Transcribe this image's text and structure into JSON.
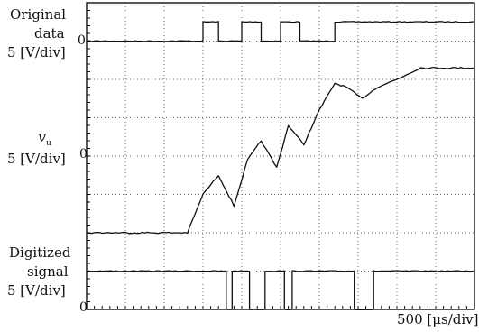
{
  "labels": {
    "original_l1": "Original",
    "original_l2": "data",
    "original_scale": "5 [V/div]",
    "vu_symbol": "v",
    "vu_sub": "u",
    "vu_scale": "5 [V/div]",
    "digitized_l1": "Digitized",
    "digitized_l2": "signal",
    "digitized_scale": "5 [V/div]",
    "zero": "0",
    "time_scale": "500 [μs/div]"
  },
  "chart_data": {
    "type": "line",
    "xlabel": "500 [μs/div]",
    "grid": true,
    "x_divisions": 10,
    "y_divisions": 8,
    "x_unit": "div",
    "series": [
      {
        "name": "Original data",
        "volts_per_div": 5,
        "zero_level_div": 7.0,
        "x": [
          0,
          3.0,
          3.0,
          3.4,
          3.4,
          4.0,
          4.0,
          4.5,
          4.5,
          5.0,
          5.0,
          5.5,
          5.5,
          6.4,
          6.4,
          10
        ],
        "y_div": [
          0,
          0,
          0.5,
          0.5,
          0,
          0,
          0.5,
          0.5,
          0,
          0,
          0.5,
          0.5,
          0,
          0,
          0.5,
          0.5
        ]
      },
      {
        "name": "v_u",
        "volts_per_div": 5,
        "zero_level_div": 4.0,
        "x": [
          0,
          1.5,
          2.6,
          3.0,
          3.4,
          3.8,
          4.15,
          4.5,
          4.9,
          5.2,
          5.6,
          6.0,
          6.4,
          6.7,
          7.1,
          7.5,
          8.0,
          8.6,
          10
        ],
        "y_div": [
          -2.0,
          -2.0,
          -2.0,
          -1.0,
          -0.5,
          -1.3,
          -0.1,
          0.4,
          -0.3,
          0.8,
          0.3,
          1.2,
          1.9,
          1.8,
          1.5,
          1.8,
          2.0,
          2.3,
          2.3
        ]
      },
      {
        "name": "Digitized signal",
        "volts_per_div": 5,
        "zero_level_div": 0.0,
        "x": [
          0,
          3.6,
          3.6,
          3.75,
          3.75,
          4.2,
          4.2,
          4.6,
          4.6,
          5.1,
          5.1,
          5.3,
          5.3,
          6.9,
          6.9,
          7.4,
          7.4,
          10
        ],
        "y_div": [
          1.0,
          1.0,
          0,
          0,
          1.0,
          1.0,
          0,
          0,
          1.0,
          1.0,
          0,
          0,
          1.0,
          1.0,
          0,
          0,
          1.0,
          1.0
        ]
      }
    ]
  }
}
